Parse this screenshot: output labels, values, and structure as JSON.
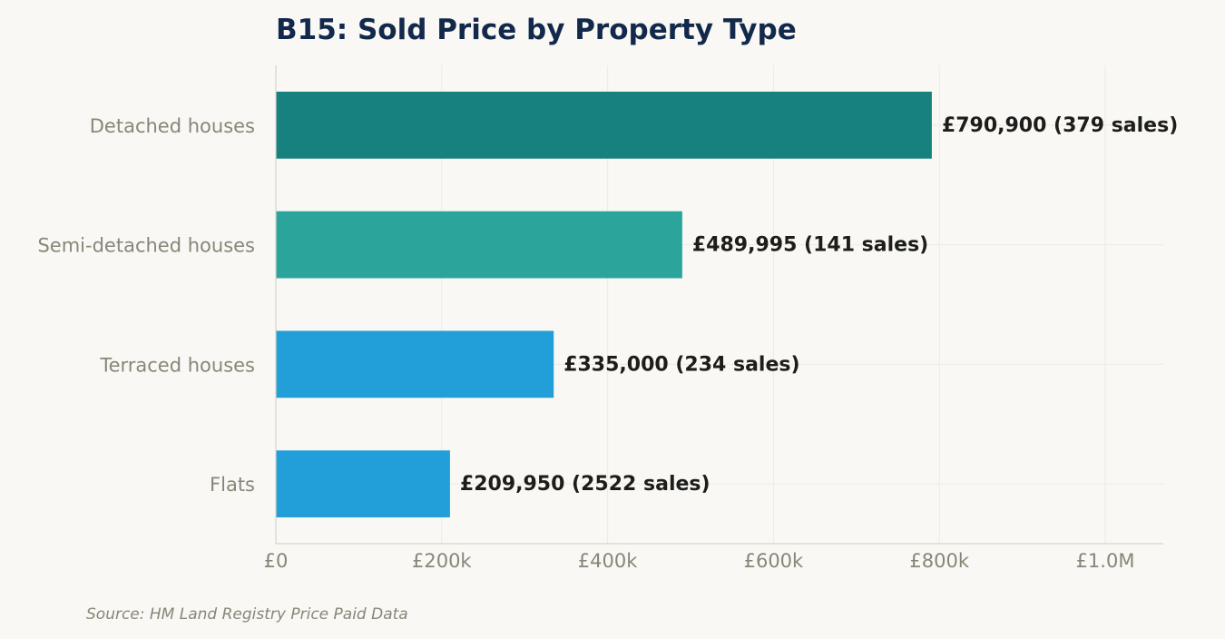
{
  "chart_data": {
    "type": "bar",
    "orientation": "horizontal",
    "title": "B15: Sold Price by Property Type",
    "categories": [
      "Detached houses",
      "Semi-detached houses",
      "Terraced houses",
      "Flats"
    ],
    "values": [
      790900,
      489995,
      335000,
      209950
    ],
    "sales": [
      379,
      141,
      234,
      2522
    ],
    "value_labels": [
      "£790,900  (379 sales)",
      "£489,995  (141 sales)",
      "£335,000  (234 sales)",
      "£209,950  (2522 sales)"
    ],
    "bar_colors": [
      "#178180",
      "#2ba59b",
      "#229fd9",
      "#229fd9"
    ],
    "xlim": [
      0,
      1070000
    ],
    "x_ticks": [
      0,
      200000,
      400000,
      600000,
      800000,
      1000000
    ],
    "x_tick_labels": [
      "£0",
      "£200k",
      "£400k",
      "£600k",
      "£800k",
      "£1.0M"
    ],
    "grid": true,
    "source": "Source: HM Land Registry Price Paid Data"
  }
}
